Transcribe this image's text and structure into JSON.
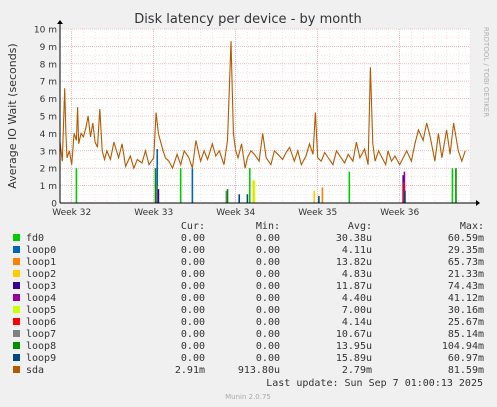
{
  "chart_data": {
    "type": "line",
    "title": "Disk latency per device - by month",
    "ylabel": "Average IO Wait (seconds)",
    "side_label": "RRDTOOL / TOBI OETIKER",
    "footer": "Munin 2.0.75",
    "last_update": "Last update: Sun Sep  7 01:00:13 2025",
    "ylim": [
      0,
      10
    ],
    "y_unit": "m",
    "y_ticks": [
      {
        "value": 0,
        "label": "0"
      },
      {
        "value": 1,
        "label": "1 m"
      },
      {
        "value": 2,
        "label": "2 m"
      },
      {
        "value": 3,
        "label": "3 m"
      },
      {
        "value": 4,
        "label": "4 m"
      },
      {
        "value": 5,
        "label": "5 m"
      },
      {
        "value": 6,
        "label": "6 m"
      },
      {
        "value": 7,
        "label": "7 m"
      },
      {
        "value": 8,
        "label": "8 m"
      },
      {
        "value": 9,
        "label": "9 m"
      },
      {
        "value": 10,
        "label": "10 m"
      }
    ],
    "xlim": [
      0,
      35
    ],
    "x_ticks": [
      {
        "value": 1,
        "label": "Week 32"
      },
      {
        "value": 8,
        "label": "Week 33"
      },
      {
        "value": 15,
        "label": "Week 34"
      },
      {
        "value": 22,
        "label": "Week 35"
      },
      {
        "value": 29,
        "label": "Week 36"
      }
    ],
    "columns": [
      "",
      "Cur:",
      "Min:",
      "Avg:",
      "Max:"
    ],
    "series": [
      {
        "name": "fd0",
        "color": "#00cc00",
        "cur": "0.00",
        "min": "0.00",
        "avg": "30.38u",
        "max": "60.59m",
        "x": [
          1.4,
          10.3,
          16.2,
          24.7,
          33.5
        ],
        "y": [
          2.0,
          2.0,
          2.0,
          1.8,
          2.0
        ]
      },
      {
        "name": "loop0",
        "color": "#0066b3",
        "cur": "0.00",
        "min": "0.00",
        "avg": "4.11u",
        "max": "29.35m",
        "x": [
          8.3,
          11.3,
          29.4
        ],
        "y": [
          3.1,
          2.0,
          1.0
        ]
      },
      {
        "name": "loop1",
        "color": "#ff8000",
        "cur": "0.00",
        "min": "0.00",
        "avg": "13.82u",
        "max": "65.73m",
        "x": [
          8.2,
          22.4
        ],
        "y": [
          0.8,
          0.9
        ]
      },
      {
        "name": "loop2",
        "color": "#ffcc00",
        "cur": "0.00",
        "min": "0.00",
        "avg": "4.83u",
        "max": "21.33m",
        "x": [
          16.5,
          21.7
        ],
        "y": [
          1.3,
          0.7
        ]
      },
      {
        "name": "loop3",
        "color": "#330099",
        "cur": "0.00",
        "min": "0.00",
        "avg": "11.87u",
        "max": "74.43m",
        "x": [
          8.4,
          29.3
        ],
        "y": [
          0.8,
          1.6
        ]
      },
      {
        "name": "loop4",
        "color": "#990099",
        "cur": "0.00",
        "min": "0.00",
        "avg": "4.40u",
        "max": "41.12m",
        "x": [
          29.4
        ],
        "y": [
          1.8
        ]
      },
      {
        "name": "loop5",
        "color": "#ccff00",
        "cur": "0.00",
        "min": "0.00",
        "avg": "7.00u",
        "max": "30.16m",
        "x": [
          16.6
        ],
        "y": [
          1.3
        ]
      },
      {
        "name": "loop6",
        "color": "#ff0000",
        "cur": "0.00",
        "min": "0.00",
        "avg": "4.14u",
        "max": "25.67m",
        "x": [
          29.35
        ],
        "y": [
          1.2
        ]
      },
      {
        "name": "loop7",
        "color": "#808080",
        "cur": "0.00",
        "min": "0.00",
        "avg": "10.67u",
        "max": "85.14m",
        "x": [
          8.25,
          14.2
        ],
        "y": [
          1.0,
          0.7
        ]
      },
      {
        "name": "loop8",
        "color": "#008f00",
        "cur": "0.00",
        "min": "0.00",
        "avg": "13.95u",
        "max": "104.94m",
        "x": [
          8.15,
          14.3,
          33.8
        ],
        "y": [
          2.0,
          0.8,
          2.0
        ]
      },
      {
        "name": "loop9",
        "color": "#00487d",
        "cur": "0.00",
        "min": "0.00",
        "avg": "15.89u",
        "max": "60.97m",
        "x": [
          15.3,
          16.0,
          22.1,
          29.45
        ],
        "y": [
          0.5,
          0.5,
          0.4,
          0.7
        ]
      },
      {
        "name": "sda",
        "color": "#b35a00",
        "cur": "2.91m",
        "min": "913.80u",
        "avg": "2.79m",
        "max": "81.59m",
        "x": [
          0.0,
          0.2,
          0.4,
          0.5,
          0.6,
          0.8,
          1.0,
          1.2,
          1.4,
          1.5,
          1.6,
          1.8,
          2.0,
          2.2,
          2.4,
          2.6,
          2.8,
          3.0,
          3.2,
          3.4,
          3.6,
          3.8,
          4.0,
          4.3,
          4.6,
          5.0,
          5.3,
          5.6,
          6.0,
          6.3,
          6.6,
          7.0,
          7.3,
          7.6,
          8.0,
          8.2,
          8.4,
          8.6,
          8.8,
          9.0,
          9.3,
          9.6,
          10.0,
          10.3,
          10.6,
          11.0,
          11.3,
          11.6,
          12.0,
          12.3,
          12.6,
          13.0,
          13.3,
          13.6,
          14.0,
          14.3,
          14.6,
          14.8,
          15.0,
          15.2,
          15.5,
          15.8,
          16.0,
          16.3,
          16.6,
          17.0,
          17.3,
          17.6,
          18.0,
          18.3,
          18.6,
          19.0,
          19.3,
          19.6,
          20.0,
          20.3,
          20.6,
          21.0,
          21.3,
          21.6,
          21.8,
          22.0,
          22.3,
          22.6,
          23.0,
          23.3,
          23.6,
          24.0,
          24.3,
          24.6,
          25.0,
          25.3,
          25.6,
          26.0,
          26.3,
          26.5,
          26.7,
          26.9,
          27.2,
          27.5,
          27.8,
          28.0,
          28.3,
          28.6,
          29.0,
          29.3,
          29.6,
          30.0,
          30.3,
          30.6,
          31.0,
          31.3,
          31.6,
          32.0,
          32.3,
          32.6,
          33.0,
          33.3,
          33.6,
          34.0,
          34.3,
          34.6
        ],
        "y": [
          3.5,
          2.4,
          6.6,
          4.0,
          2.6,
          3.0,
          2.2,
          4.0,
          3.6,
          5.5,
          3.4,
          4.0,
          3.8,
          4.3,
          5.0,
          3.8,
          4.6,
          3.5,
          3.2,
          5.4,
          3.0,
          2.5,
          3.0,
          2.5,
          3.5,
          2.6,
          3.4,
          2.1,
          2.7,
          2.0,
          2.5,
          2.3,
          3.0,
          2.2,
          2.6,
          5.2,
          4.0,
          3.5,
          3.0,
          2.6,
          2.4,
          2.0,
          2.8,
          2.2,
          3.0,
          2.6,
          2.0,
          3.6,
          2.4,
          3.0,
          2.5,
          3.4,
          2.7,
          3.0,
          2.2,
          3.6,
          9.3,
          4.0,
          3.0,
          2.6,
          3.4,
          2.0,
          2.6,
          3.0,
          2.8,
          2.4,
          4.0,
          2.6,
          2.2,
          3.0,
          2.8,
          2.5,
          2.9,
          3.2,
          2.4,
          3.0,
          2.2,
          2.7,
          3.4,
          2.8,
          5.2,
          2.6,
          2.4,
          2.9,
          2.5,
          2.2,
          3.0,
          2.6,
          2.3,
          2.8,
          2.4,
          3.5,
          2.6,
          3.1,
          2.2,
          7.8,
          3.4,
          2.4,
          3.0,
          2.6,
          2.2,
          3.0,
          2.4,
          2.7,
          2.2,
          2.6,
          3.0,
          2.4,
          3.4,
          4.2,
          3.6,
          4.6,
          3.8,
          2.4,
          4.0,
          2.6,
          4.2,
          2.8,
          4.6,
          3.0,
          2.4,
          3.0
        ]
      }
    ]
  }
}
